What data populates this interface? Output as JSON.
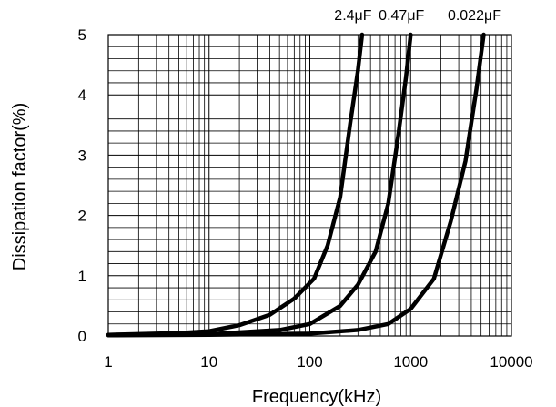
{
  "chart_data": {
    "type": "line",
    "title": "",
    "xlabel": "Frequency(kHz)",
    "ylabel": "Dissipation factor(%)",
    "x_scale": "log",
    "xlim": [
      1,
      10000
    ],
    "ylim": [
      0,
      5
    ],
    "x_ticks": [
      "1",
      "10",
      "100",
      "1000",
      "10000"
    ],
    "y_ticks": [
      "0",
      "1",
      "2",
      "3",
      "4",
      "5"
    ],
    "grid": true,
    "legend": "none",
    "series": [
      {
        "name": "2.4μF",
        "x": [
          1,
          5,
          10,
          20,
          40,
          70,
          110,
          150,
          200,
          250,
          300,
          330
        ],
        "y": [
          0.02,
          0.05,
          0.08,
          0.18,
          0.35,
          0.62,
          0.95,
          1.5,
          2.3,
          3.5,
          4.4,
          5.0
        ]
      },
      {
        "name": "0.47μF",
        "x": [
          1,
          10,
          50,
          100,
          200,
          300,
          450,
          600,
          750,
          900,
          1000
        ],
        "y": [
          0.02,
          0.03,
          0.1,
          0.2,
          0.5,
          0.85,
          1.4,
          2.2,
          3.3,
          4.3,
          5.0
        ]
      },
      {
        "name": "0.022μF",
        "x": [
          1,
          10,
          100,
          300,
          600,
          1000,
          1700,
          2500,
          3500,
          4500,
          5300
        ],
        "y": [
          0.01,
          0.02,
          0.04,
          0.1,
          0.2,
          0.45,
          0.95,
          1.9,
          2.9,
          4.1,
          5.0
        ]
      }
    ]
  }
}
